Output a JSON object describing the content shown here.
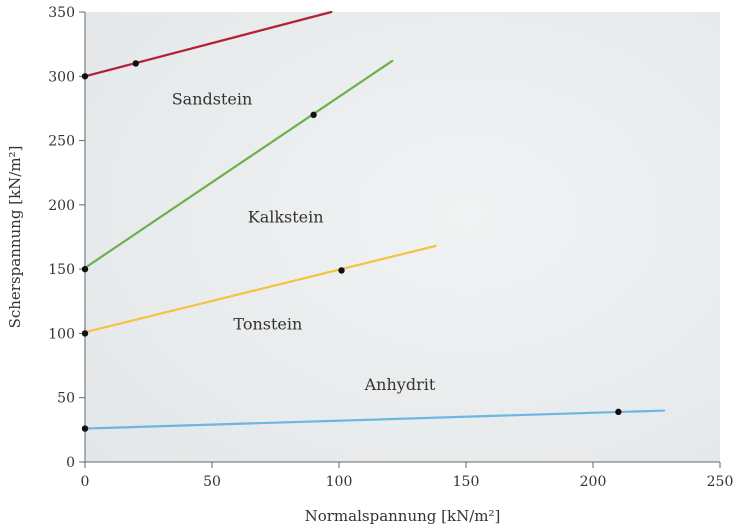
{
  "chart_data": {
    "type": "line",
    "title": "",
    "xlabel": "Normalspannung [kN/m²]",
    "ylabel": "Scherspannung [kN/m²]",
    "xlim": [
      0,
      250
    ],
    "ylim": [
      0,
      350
    ],
    "xticks": [
      0,
      50,
      100,
      150,
      200,
      250
    ],
    "yticks": [
      0,
      50,
      100,
      150,
      200,
      250,
      300,
      350
    ],
    "grid": false,
    "legend": "inline labels",
    "background": "#eceeef",
    "series": [
      {
        "name": "Sandstein",
        "color": "#b22234",
        "line": [
          [
            0,
            300
          ],
          [
            97,
            350
          ]
        ],
        "points": [
          [
            0,
            300
          ],
          [
            20,
            310
          ]
        ],
        "label_at": [
          50,
          282
        ]
      },
      {
        "name": "Kalkstein",
        "color": "#6ab04c",
        "line": [
          [
            0,
            151
          ],
          [
            121,
            312
          ]
        ],
        "points": [
          [
            0,
            150
          ],
          [
            90,
            270
          ]
        ],
        "label_at": [
          79,
          190
        ]
      },
      {
        "name": "Tonstein",
        "color": "#f5c242",
        "line": [
          [
            0,
            101
          ],
          [
            138,
            168
          ]
        ],
        "points": [
          [
            0,
            100
          ],
          [
            101,
            149
          ]
        ],
        "label_at": [
          72,
          107
        ]
      },
      {
        "name": "Anhydrit",
        "color": "#6cb7e0",
        "line": [
          [
            0,
            26
          ],
          [
            228,
            40
          ]
        ],
        "points": [
          [
            0,
            26
          ],
          [
            210,
            39
          ]
        ],
        "label_at": [
          124,
          60
        ]
      }
    ]
  }
}
